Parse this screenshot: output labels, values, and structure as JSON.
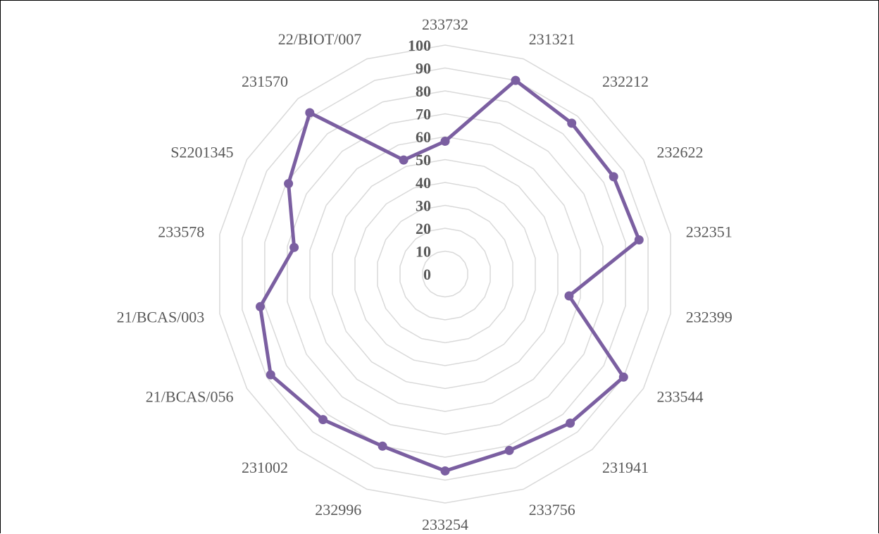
{
  "chart_data": {
    "type": "radar",
    "categories": [
      "233732",
      "231321",
      "232212",
      "232622",
      "232351",
      "232399",
      "233544",
      "231941",
      "233756",
      "233254",
      "232996",
      "231002",
      "21/BCAS/056",
      "21/BCAS/003",
      "233578",
      "S2201345",
      "231570",
      "22/BIOT/007"
    ],
    "series": [
      {
        "values": [
          58,
          90,
          86,
          85,
          86,
          55,
          90,
          85,
          82,
          86,
          80,
          83,
          88,
          82,
          67,
          79,
          92,
          53
        ]
      }
    ],
    "ticks": [
      "0",
      "10",
      "20",
      "30",
      "40",
      "50",
      "60",
      "70",
      "80",
      "90",
      "100"
    ],
    "rlim": [
      0,
      100
    ],
    "grid": true,
    "colors": {
      "series": "#7b5fa1",
      "grid": "#d9d9d9",
      "labels": "#595959"
    }
  }
}
